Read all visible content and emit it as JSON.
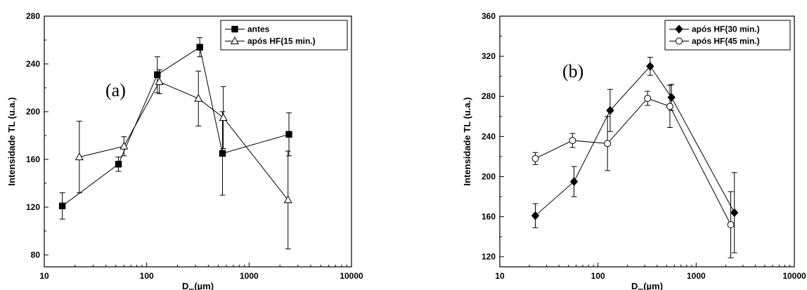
{
  "chart_data": [
    {
      "type": "scatter",
      "panel_label": "(a)",
      "xlabel": "D",
      "xlabel_sub": "m",
      "xlabel_unit": "(µm)",
      "ylabel": "Intensidade TL (u.a.)",
      "x_scale": "log",
      "xlim": [
        10,
        10000
      ],
      "ylim": [
        70,
        280
      ],
      "x_ticks": [
        10,
        100,
        1000,
        10000
      ],
      "x_tick_labels": [
        "10",
        "100",
        "1000",
        "10000"
      ],
      "y_ticks": [
        80,
        120,
        160,
        200,
        240,
        280
      ],
      "y_tick_labels": [
        "80",
        "120",
        "160",
        "200",
        "240",
        "280"
      ],
      "legend_position": "top-right",
      "grid": false,
      "series": [
        {
          "name": "antes",
          "marker": "square-filled",
          "x": [
            15,
            53,
            127,
            330,
            550,
            2450
          ],
          "y": [
            121,
            156,
            231,
            254,
            165,
            181
          ],
          "err": [
            11,
            6,
            15,
            8,
            35,
            18
          ]
        },
        {
          "name": "após HF(15 min.)",
          "marker": "triangle-open",
          "x": [
            22,
            60,
            133,
            320,
            560,
            2400
          ],
          "y": [
            162,
            171,
            225,
            211,
            195,
            126
          ],
          "err": [
            30,
            8,
            10,
            23,
            26,
            41
          ]
        }
      ]
    },
    {
      "type": "scatter",
      "panel_label": "(b)",
      "xlabel": "D",
      "xlabel_sub": "m",
      "xlabel_unit": "(µm)",
      "ylabel": "Intensidade TL (u.a.)",
      "x_scale": "log",
      "xlim": [
        10,
        10000
      ],
      "ylim": [
        110,
        360
      ],
      "x_ticks": [
        10,
        100,
        1000,
        10000
      ],
      "x_tick_labels": [
        "10",
        "100",
        "1000",
        "10000"
      ],
      "y_ticks": [
        120,
        160,
        200,
        240,
        280,
        320,
        360
      ],
      "y_tick_labels": [
        "120",
        "160",
        "200",
        "240",
        "280",
        "320",
        "360"
      ],
      "legend_position": "top-right",
      "grid": false,
      "series": [
        {
          "name": "após HF(30 min.)",
          "marker": "diamond-filled",
          "x": [
            23,
            57,
            133,
            340,
            560,
            2450
          ],
          "y": [
            161,
            195,
            266,
            310,
            279,
            164
          ],
          "err": [
            12,
            15,
            21,
            9,
            13,
            40
          ]
        },
        {
          "name": "após HF(45 min.)",
          "marker": "circle-open",
          "x": [
            23,
            55,
            125,
            320,
            540,
            2250
          ],
          "y": [
            218,
            236,
            233,
            278,
            270,
            152
          ],
          "err": [
            6,
            7,
            27,
            7,
            21,
            33
          ]
        }
      ]
    }
  ]
}
